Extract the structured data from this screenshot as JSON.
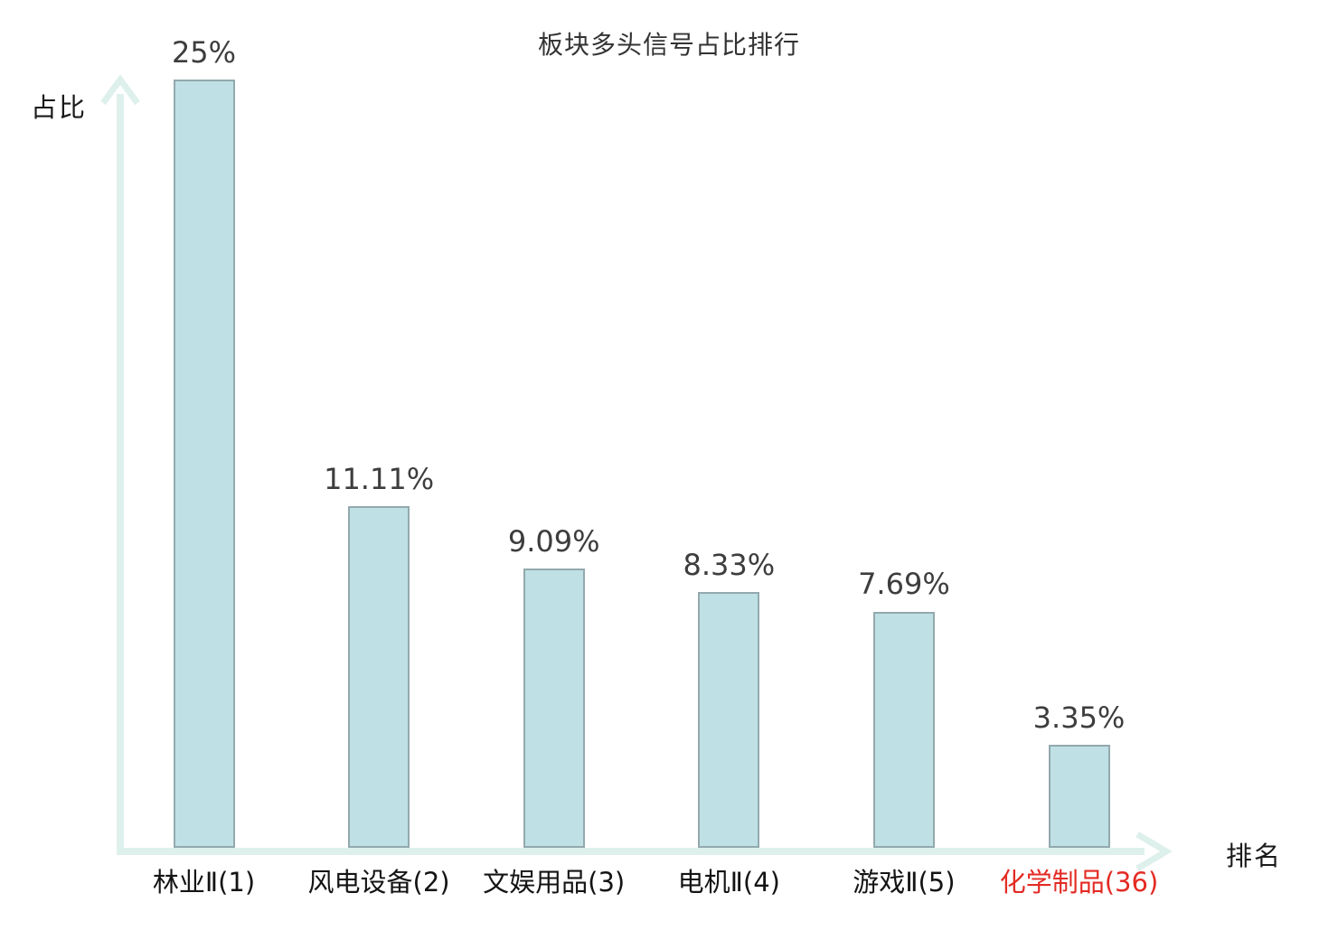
{
  "chart_data": {
    "type": "bar",
    "title": "板块多头信号占比排行",
    "xlabel": "排名",
    "ylabel": "占比",
    "categories": [
      "林业Ⅱ(1)",
      "风电设备(2)",
      "文娱用品(3)",
      "电机Ⅱ(4)",
      "游戏Ⅱ(5)",
      "化学制品(36)"
    ],
    "values": [
      25,
      11.11,
      9.09,
      8.33,
      7.69,
      3.35
    ],
    "value_labels": [
      "25%",
      "11.11%",
      "9.09%",
      "8.33%",
      "7.69%",
      "3.35%"
    ],
    "highlight_index": 5,
    "ylim": [
      0,
      25
    ],
    "grid": false,
    "legend": null,
    "colors": {
      "bar_fill": "#bfe0e5",
      "bar_border": "#93a9ae",
      "axis": "#def0ec",
      "title_text": "#333333",
      "value_text": "#3d3d3d",
      "category_text": "#141414",
      "highlight_text": "#e32b24"
    }
  }
}
